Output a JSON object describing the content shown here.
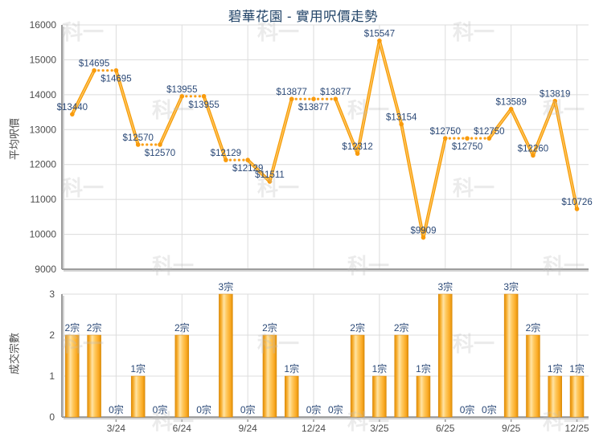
{
  "title": "碧華花園 - 實用呎價走勢",
  "watermark_text": "科一",
  "colors": {
    "title": "#234569",
    "data_label": "#2B4977",
    "tick_label": "#4D4D4D",
    "grid": "#DCDCDC",
    "axis": "#9D9D9D",
    "axis_shadow": "#D4D4D4",
    "line_outer": "#F59C07",
    "line_inner": "#FFC35C",
    "line_dotted": "#FBA018",
    "marker": "#F99B0C",
    "bar_edge_dark": "#E08C06",
    "bar_main": "#FBAB26",
    "bar_highlight": "#FFE3A4",
    "bar_stroke": "#D8880A",
    "watermark": "#BFBFBF"
  },
  "chart_data": [
    {
      "type": "line",
      "title": "碧華花園 - 實用呎價走勢",
      "ylabel": "平均呎價",
      "ylim": [
        9000,
        16000
      ],
      "yticks": [
        16000,
        15000,
        14000,
        13000,
        12000,
        11000,
        10000,
        9000
      ],
      "grid": true,
      "legend": "none",
      "xticks": [
        {
          "index": 3,
          "label": "3/24"
        },
        {
          "index": 6,
          "label": "6/24"
        },
        {
          "index": 9,
          "label": "9/24"
        },
        {
          "index": 12,
          "label": "12/24"
        },
        {
          "index": 15,
          "label": "3/25"
        },
        {
          "index": 18,
          "label": "6/25"
        },
        {
          "index": 21,
          "label": "9/25"
        },
        {
          "index": 24,
          "label": "12/25"
        }
      ],
      "points": [
        {
          "value": 13440,
          "label": "$13440",
          "label_pos": "above",
          "carried": false
        },
        {
          "value": 14695,
          "label": "$14695",
          "label_pos": "above",
          "carried": false
        },
        {
          "value": 14695,
          "label": "$14695",
          "label_pos": "below",
          "carried": true
        },
        {
          "value": 12570,
          "label": "$12570",
          "label_pos": "above",
          "carried": false
        },
        {
          "value": 12570,
          "label": "$12570",
          "label_pos": "below",
          "carried": true
        },
        {
          "value": 13955,
          "label": "$13955",
          "label_pos": "above",
          "carried": false
        },
        {
          "value": 13955,
          "label": "$13955",
          "label_pos": "below",
          "carried": true
        },
        {
          "value": 12129,
          "label": "$12129",
          "label_pos": "above",
          "carried": false
        },
        {
          "value": 12129,
          "label": "$12129",
          "label_pos": "below",
          "carried": true
        },
        {
          "value": 11511,
          "label": "$11511",
          "label_pos": "above",
          "carried": false
        },
        {
          "value": 13877,
          "label": "$13877",
          "label_pos": "above",
          "carried": false
        },
        {
          "value": 13877,
          "label": "$13877",
          "label_pos": "below",
          "carried": true
        },
        {
          "value": 13877,
          "label": "$13877",
          "label_pos": "above",
          "carried": true
        },
        {
          "value": 12312,
          "label": "$12312",
          "label_pos": "above",
          "carried": false
        },
        {
          "value": 15547,
          "label": "$15547",
          "label_pos": "above",
          "carried": false
        },
        {
          "value": 13154,
          "label": "$13154",
          "label_pos": "above",
          "carried": false
        },
        {
          "value": 9909,
          "label": "$9909",
          "label_pos": "above",
          "carried": false
        },
        {
          "value": 12750,
          "label": "$12750",
          "label_pos": "above",
          "carried": false
        },
        {
          "value": 12750,
          "label": "$12750",
          "label_pos": "below",
          "carried": true
        },
        {
          "value": 12750,
          "label": "$12750",
          "label_pos": "above",
          "carried": true
        },
        {
          "value": 13589,
          "label": "$13589",
          "label_pos": "above",
          "carried": false
        },
        {
          "value": 12260,
          "label": "$12260",
          "label_pos": "above",
          "carried": false
        },
        {
          "value": 13819,
          "label": "$13819",
          "label_pos": "above",
          "carried": false
        },
        {
          "value": 10726,
          "label": "$10726",
          "label_pos": "above",
          "carried": false
        }
      ]
    },
    {
      "type": "bar",
      "ylabel": "成交宗數",
      "ylim": [
        0,
        3
      ],
      "yticks": [
        0,
        1,
        2,
        3
      ],
      "grid": true,
      "unit": "宗",
      "values": [
        2,
        2,
        0,
        1,
        0,
        2,
        0,
        3,
        0,
        2,
        1,
        0,
        0,
        2,
        1,
        2,
        1,
        3,
        0,
        0,
        3,
        2,
        1,
        1
      ]
    }
  ]
}
